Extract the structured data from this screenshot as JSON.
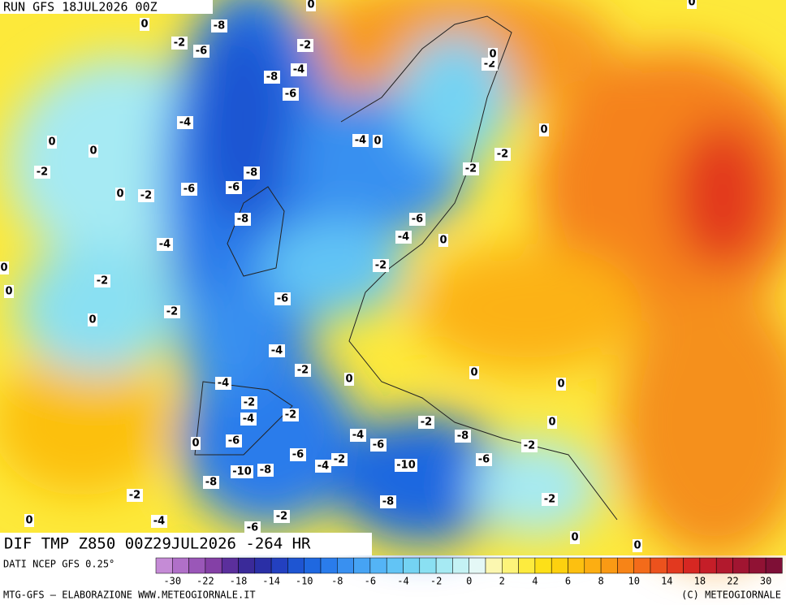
{
  "header": {
    "run": "RUN GFS 18JUL2026 00Z"
  },
  "map": {
    "title": "DIF TMP Z850 00Z29JUL2026 -264 HR",
    "contour_labels": [
      -8,
      -2,
      -6,
      -2,
      -4,
      -8,
      -6,
      -4,
      0,
      0,
      -2,
      -8,
      -6,
      -6,
      -2,
      0,
      -8,
      -4,
      -2,
      0,
      0,
      -6,
      -2,
      0,
      -4,
      -2,
      0,
      -4,
      -2,
      -4,
      -2,
      -6,
      0,
      -6,
      -10,
      -8,
      -8,
      -4,
      -2,
      -4,
      -6,
      -10,
      -8,
      -2,
      -8,
      -6,
      -2,
      -2,
      0,
      0,
      -2,
      0,
      -4,
      -2,
      -6,
      0,
      -4,
      0,
      -2,
      -2,
      -6,
      -4,
      0,
      -2,
      0,
      -2,
      0,
      0,
      0,
      0,
      0,
      0
    ]
  },
  "legend": {
    "source": "DATI NCEP GFS 0.25°",
    "colors": [
      "#c58bd6",
      "#b070c8",
      "#9a57b8",
      "#8440a6",
      "#5b2f9c",
      "#3a2a99",
      "#2a2fa6",
      "#2340c0",
      "#1e55d2",
      "#1f68e0",
      "#2a7ceb",
      "#3990f0",
      "#46a3f4",
      "#54b4f6",
      "#62c4f5",
      "#74d3f3",
      "#8ae0f2",
      "#a6eaf3",
      "#c4f2f4",
      "#e4f8f6",
      "#fbf7b0",
      "#fdf47a",
      "#fdeb3e",
      "#fde018",
      "#fdd10f",
      "#fdc010",
      "#fcae12",
      "#fa9a14",
      "#f78417",
      "#f36b1a",
      "#ec521d",
      "#e2391f",
      "#d62722",
      "#c51e28",
      "#b2192d",
      "#a11531",
      "#901234",
      "#7e0f36"
    ],
    "ticks": [
      -30,
      -22,
      -18,
      -14,
      -10,
      -8,
      -6,
      -4,
      -2,
      0,
      2,
      4,
      6,
      8,
      10,
      14,
      18,
      22,
      30
    ]
  },
  "footer": {
    "left": "MTG-GFS — ELABORAZIONE WWW.METEOGIORNALE.IT",
    "right": "(C) METEOGIORNALE"
  }
}
